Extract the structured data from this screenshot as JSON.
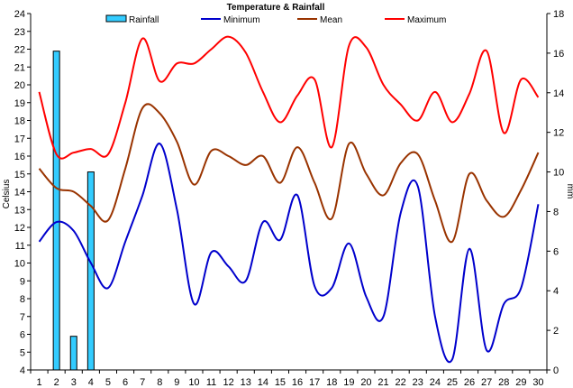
{
  "chart_data": {
    "type": "line",
    "title": "Temperature & Rainfall",
    "ylabel_left": "Celsius",
    "ylabel_right": "mm",
    "x": [
      1,
      2,
      3,
      4,
      5,
      6,
      7,
      8,
      9,
      10,
      11,
      12,
      13,
      14,
      15,
      16,
      17,
      18,
      19,
      20,
      21,
      22,
      23,
      24,
      25,
      26,
      27,
      28,
      29,
      30
    ],
    "ylim_left": [
      4,
      24
    ],
    "ylim_right": [
      0,
      18
    ],
    "grid": false,
    "legend_position": "top",
    "series": [
      {
        "name": "Rainfall",
        "kind": "bar",
        "axis": "right",
        "color": "#33CCFF",
        "values": [
          0,
          16.1,
          1.7,
          10.0,
          0,
          0,
          0,
          0,
          0,
          0,
          0,
          0,
          0,
          0,
          0,
          0,
          0,
          0,
          0,
          0,
          0,
          0,
          0,
          0,
          0,
          0,
          0,
          0,
          0,
          0
        ]
      },
      {
        "name": "Minimum",
        "kind": "line",
        "axis": "left",
        "color": "#0000CC",
        "values": [
          11.2,
          12.3,
          11.8,
          10.0,
          8.6,
          11.2,
          13.8,
          16.7,
          13.0,
          7.7,
          10.6,
          9.8,
          9.0,
          12.3,
          11.3,
          13.8,
          8.7,
          8.6,
          11.1,
          8.1,
          7.0,
          12.8,
          14.3,
          7.0,
          4.6,
          10.8,
          5.1,
          7.7,
          8.6,
          13.3
        ]
      },
      {
        "name": "Mean",
        "kind": "line",
        "axis": "left",
        "color": "#993300",
        "values": [
          15.3,
          14.2,
          14.0,
          13.2,
          12.4,
          15.3,
          18.7,
          18.4,
          16.8,
          14.4,
          16.3,
          16.0,
          15.5,
          16.0,
          14.5,
          16.5,
          14.5,
          12.5,
          16.7,
          15.0,
          13.8,
          15.6,
          16.1,
          13.5,
          11.2,
          15.0,
          13.5,
          12.6,
          14.1,
          16.2
        ]
      },
      {
        "name": "Maximum",
        "kind": "line",
        "axis": "left",
        "color": "#FF0000",
        "values": [
          19.6,
          16.1,
          16.2,
          16.4,
          16.1,
          19.0,
          22.6,
          20.2,
          21.2,
          21.2,
          22.0,
          22.7,
          21.8,
          19.6,
          17.9,
          19.4,
          20.3,
          16.5,
          22.2,
          22.1,
          20.0,
          18.9,
          18.0,
          19.6,
          17.9,
          19.5,
          21.9,
          17.3,
          20.3,
          19.3
        ]
      }
    ]
  }
}
